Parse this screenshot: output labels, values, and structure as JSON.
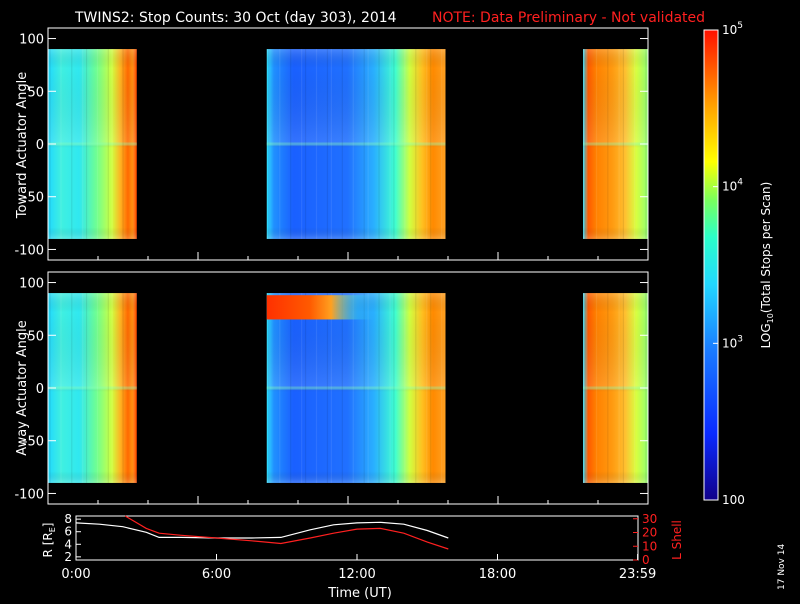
{
  "header": {
    "title": "TWINS2: Stop Counts: 30 Oct (day 303), 2014",
    "note": "NOTE: Data Preliminary - Not validated",
    "note_color": "#ff2020"
  },
  "footer": {
    "date_stamp": "17 Nov 14"
  },
  "chart_data": [
    {
      "type": "heatmap",
      "panel": "toward",
      "ylabel": "Toward Actuator Angle",
      "ylim": [
        -110,
        110
      ],
      "yticks": [
        "100",
        "50",
        "0",
        "-50",
        "-100"
      ],
      "ytick_values": [
        100,
        50,
        0,
        -50,
        -100
      ],
      "data_angle_range": [
        -90,
        90
      ],
      "xlim": [
        0,
        24
      ],
      "data_intervals_hours": [
        [
          0.0,
          3.55
        ],
        [
          8.75,
          15.9
        ],
        [
          21.4,
          24.0
        ]
      ],
      "color_scale": "log",
      "background": "#000000"
    },
    {
      "type": "heatmap",
      "panel": "away",
      "ylabel": "Away Actuator Angle",
      "ylim": [
        -110,
        110
      ],
      "yticks": [
        "100",
        "50",
        "0",
        "-50",
        "-100"
      ],
      "ytick_values": [
        100,
        50,
        0,
        -50,
        -100
      ],
      "data_angle_range": [
        -90,
        90
      ],
      "xlim": [
        0,
        24
      ],
      "data_intervals_hours": [
        [
          0.0,
          3.55
        ],
        [
          8.75,
          15.9
        ],
        [
          21.4,
          24.0
        ]
      ],
      "color_scale": "log",
      "background": "#000000"
    },
    {
      "type": "line",
      "panel": "ephemeris",
      "xlabel": "Time (UT)",
      "xticks": [
        "0:00",
        "6:00",
        "12:00",
        "18:00",
        "23:59"
      ],
      "xtick_values": [
        0,
        6,
        12,
        18,
        23.983
      ],
      "xlim": [
        0,
        24
      ],
      "left_axis": {
        "label": "R [R",
        "label_sub": "E",
        "label_end": "]",
        "ylim": [
          1.5,
          8.5
        ],
        "ticks": [
          "8",
          "6",
          "4",
          "2"
        ],
        "tick_values": [
          8,
          6,
          4,
          2
        ],
        "color": "#ffffff"
      },
      "right_axis": {
        "label": "L Shell",
        "ylim": [
          0,
          32
        ],
        "ticks": [
          "30",
          "20",
          "10",
          "0"
        ],
        "tick_values": [
          30,
          20,
          10,
          0
        ],
        "color": "#ff2020"
      },
      "series": [
        {
          "axis": "left",
          "color": "#ffffff",
          "x": [
            0.0,
            1.0,
            2.0,
            3.0,
            3.55,
            4.5,
            6.0,
            7.5,
            8.75,
            10.0,
            11.0,
            12.0,
            13.0,
            14.0,
            15.0,
            15.9
          ],
          "y": [
            7.4,
            7.2,
            6.8,
            5.9,
            5.1,
            5.1,
            5.0,
            5.0,
            5.1,
            6.3,
            7.1,
            7.4,
            7.5,
            7.2,
            6.2,
            5.0
          ]
        },
        {
          "axis": "right",
          "color": "#ff2020",
          "x": [
            2.1,
            2.6,
            3.0,
            3.55,
            4.5,
            6.0,
            7.5,
            8.75,
            10.0,
            11.0,
            12.0,
            13.0,
            14.0,
            15.0,
            15.9
          ],
          "y": [
            32,
            27,
            23,
            19.5,
            18,
            16,
            14,
            12,
            16,
            19.5,
            22.5,
            23,
            19.5,
            13,
            8
          ]
        }
      ]
    },
    {
      "type": "heatmap",
      "panel": "colorbar",
      "label": "LOG",
      "label_sub": "10",
      "label_end": "(Total Stops per Scan)",
      "ticks": [
        {
          "base": "10",
          "exp": "5",
          "value": 100000
        },
        {
          "base": "10",
          "exp": "4",
          "value": 10000
        },
        {
          "base": "10",
          "exp": "3",
          "value": 1000
        },
        {
          "base": "100",
          "exp": "",
          "value": 100
        }
      ],
      "range": [
        100,
        100000
      ],
      "scale": "log"
    }
  ]
}
